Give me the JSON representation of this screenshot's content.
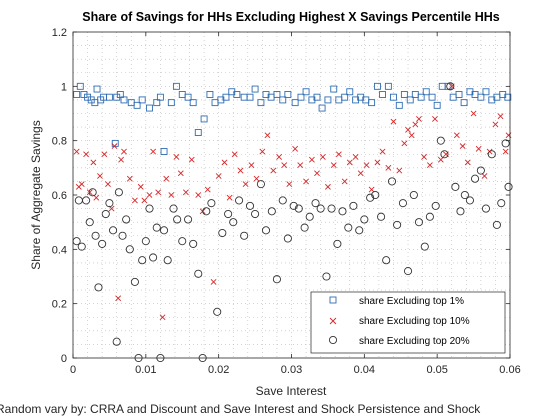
{
  "chart_data": {
    "type": "scatter",
    "title": "Share of Savings for HHs Excluding Highest X Savings Percentile HHs",
    "xlabel": "Save Interest",
    "ylabel": "Share of Aggregate Savings",
    "footnote": "Random vary by: CRRA and Discount and Save Interest and Shock Persistence and Shock",
    "xlim": [
      0,
      0.06
    ],
    "ylim": [
      0,
      1.2
    ],
    "xticks": [
      "0",
      "0.01",
      "0.02",
      "0.03",
      "0.04",
      "0.05",
      "0.06"
    ],
    "yticks": [
      "0",
      "0.2",
      "0.4",
      "0.6",
      "0.8",
      "1",
      "1.2"
    ],
    "grid": "minor dotted",
    "legend_position": "bottom-right",
    "colors": {
      "top1": "#2f6db3",
      "top10": "#d62728",
      "top20": "#333333"
    },
    "series": [
      {
        "name": "share Excluding top 1%",
        "marker": "square",
        "points": [
          [
            0.0005,
            0.97
          ],
          [
            0.001,
            1.0
          ],
          [
            0.0015,
            0.97
          ],
          [
            0.002,
            0.96
          ],
          [
            0.0025,
            0.95
          ],
          [
            0.003,
            0.94
          ],
          [
            0.0033,
            0.99
          ],
          [
            0.0038,
            0.95
          ],
          [
            0.0042,
            0.96
          ],
          [
            0.005,
            0.96
          ],
          [
            0.0058,
            0.79
          ],
          [
            0.006,
            0.96
          ],
          [
            0.0065,
            0.97
          ],
          [
            0.007,
            0.95
          ],
          [
            0.008,
            0.94
          ],
          [
            0.0088,
            0.93
          ],
          [
            0.0095,
            0.95
          ],
          [
            0.0105,
            0.92
          ],
          [
            0.0115,
            0.94
          ],
          [
            0.012,
            0.96
          ],
          [
            0.0125,
            0.76
          ],
          [
            0.0135,
            0.94
          ],
          [
            0.0142,
            1.0
          ],
          [
            0.015,
            0.97
          ],
          [
            0.0158,
            0.96
          ],
          [
            0.0165,
            0.94
          ],
          [
            0.0172,
            0.83
          ],
          [
            0.018,
            0.88
          ],
          [
            0.0188,
            0.97
          ],
          [
            0.0195,
            0.94
          ],
          [
            0.0203,
            0.95
          ],
          [
            0.021,
            0.96
          ],
          [
            0.0218,
            0.98
          ],
          [
            0.0225,
            0.97
          ],
          [
            0.0235,
            0.96
          ],
          [
            0.0243,
            0.96
          ],
          [
            0.025,
            0.99
          ],
          [
            0.0258,
            0.94
          ],
          [
            0.0265,
            0.97
          ],
          [
            0.0272,
            0.96
          ],
          [
            0.028,
            0.97
          ],
          [
            0.0288,
            0.95
          ],
          [
            0.0295,
            0.97
          ],
          [
            0.0305,
            0.94
          ],
          [
            0.0313,
            0.96
          ],
          [
            0.032,
            0.98
          ],
          [
            0.0328,
            0.95
          ],
          [
            0.0335,
            0.96
          ],
          [
            0.0342,
            0.92
          ],
          [
            0.035,
            0.95
          ],
          [
            0.0358,
            0.99
          ],
          [
            0.0365,
            0.95
          ],
          [
            0.0373,
            0.96
          ],
          [
            0.038,
            0.98
          ],
          [
            0.0388,
            0.95
          ],
          [
            0.0395,
            0.96
          ],
          [
            0.0402,
            0.95
          ],
          [
            0.041,
            0.94
          ],
          [
            0.0418,
            1.0
          ],
          [
            0.0425,
            0.97
          ],
          [
            0.0433,
            1.0
          ],
          [
            0.044,
            0.96
          ],
          [
            0.0448,
            0.93
          ],
          [
            0.0455,
            0.97
          ],
          [
            0.0463,
            0.95
          ],
          [
            0.047,
            0.97
          ],
          [
            0.0478,
            0.96
          ],
          [
            0.0485,
            0.98
          ],
          [
            0.0493,
            0.96
          ],
          [
            0.05,
            0.93
          ],
          [
            0.0507,
            1.0
          ],
          [
            0.0515,
            1.0
          ],
          [
            0.0522,
            0.96
          ],
          [
            0.053,
            0.97
          ],
          [
            0.0537,
            0.94
          ],
          [
            0.0545,
            0.98
          ],
          [
            0.0552,
            0.97
          ],
          [
            0.056,
            0.96
          ],
          [
            0.0567,
            0.98
          ],
          [
            0.0575,
            0.95
          ],
          [
            0.0582,
            0.96
          ],
          [
            0.059,
            0.97
          ],
          [
            0.0597,
            0.96
          ]
        ]
      },
      {
        "name": "share Excluding top 10%",
        "marker": "x",
        "points": [
          [
            0.0005,
            0.76
          ],
          [
            0.0008,
            0.63
          ],
          [
            0.0012,
            0.64
          ],
          [
            0.0018,
            0.75
          ],
          [
            0.0023,
            0.61
          ],
          [
            0.0028,
            0.72
          ],
          [
            0.0032,
            0.59
          ],
          [
            0.0037,
            0.67
          ],
          [
            0.0043,
            0.75
          ],
          [
            0.0048,
            0.64
          ],
          [
            0.0053,
            0.55
          ],
          [
            0.0057,
            0.78
          ],
          [
            0.0062,
            0.22
          ],
          [
            0.0066,
            0.73
          ],
          [
            0.007,
            0.76
          ],
          [
            0.0078,
            0.66
          ],
          [
            0.0085,
            0.58
          ],
          [
            0.0093,
            0.63
          ],
          [
            0.0098,
            0.58
          ],
          [
            0.0105,
            0.6
          ],
          [
            0.011,
            0.76
          ],
          [
            0.0117,
            0.61
          ],
          [
            0.0123,
            0.15
          ],
          [
            0.0128,
            0.66
          ],
          [
            0.0135,
            0.6
          ],
          [
            0.0142,
            0.74
          ],
          [
            0.0148,
            0.68
          ],
          [
            0.0155,
            0.61
          ],
          [
            0.0163,
            0.73
          ],
          [
            0.0172,
            0.6
          ],
          [
            0.0178,
            0.54
          ],
          [
            0.0185,
            0.62
          ],
          [
            0.0193,
            0.28
          ],
          [
            0.02,
            0.67
          ],
          [
            0.0208,
            0.72
          ],
          [
            0.0215,
            0.59
          ],
          [
            0.0222,
            0.75
          ],
          [
            0.023,
            0.69
          ],
          [
            0.0237,
            0.64
          ],
          [
            0.0245,
            0.71
          ],
          [
            0.0252,
            0.66
          ],
          [
            0.026,
            0.76
          ],
          [
            0.0267,
            0.82
          ],
          [
            0.0275,
            0.69
          ],
          [
            0.0283,
            0.74
          ],
          [
            0.029,
            0.71
          ],
          [
            0.0297,
            0.64
          ],
          [
            0.0305,
            0.77
          ],
          [
            0.0312,
            0.71
          ],
          [
            0.032,
            0.65
          ],
          [
            0.0328,
            0.73
          ],
          [
            0.0335,
            0.68
          ],
          [
            0.0343,
            0.74
          ],
          [
            0.035,
            0.63
          ],
          [
            0.0358,
            0.71
          ],
          [
            0.0365,
            0.75
          ],
          [
            0.0373,
            0.65
          ],
          [
            0.038,
            0.72
          ],
          [
            0.0388,
            0.74
          ],
          [
            0.0395,
            0.68
          ],
          [
            0.0403,
            0.71
          ],
          [
            0.041,
            0.62
          ],
          [
            0.0418,
            0.72
          ],
          [
            0.0425,
            0.76
          ],
          [
            0.0433,
            0.7
          ],
          [
            0.044,
            0.87
          ],
          [
            0.0448,
            0.69
          ],
          [
            0.0455,
            0.79
          ],
          [
            0.046,
            0.84
          ],
          [
            0.0465,
            0.82
          ],
          [
            0.047,
            0.86
          ],
          [
            0.0475,
            0.88
          ],
          [
            0.0482,
            0.74
          ],
          [
            0.049,
            0.71
          ],
          [
            0.0497,
            0.88
          ],
          [
            0.0505,
            0.73
          ],
          [
            0.0512,
            0.75
          ],
          [
            0.052,
            1.0
          ],
          [
            0.0527,
            0.82
          ],
          [
            0.0535,
            0.78
          ],
          [
            0.0542,
            0.72
          ],
          [
            0.055,
            0.9
          ],
          [
            0.0557,
            0.77
          ],
          [
            0.0565,
            0.67
          ],
          [
            0.0572,
            0.76
          ],
          [
            0.058,
            0.86
          ],
          [
            0.0587,
            0.89
          ],
          [
            0.0594,
            0.76
          ],
          [
            0.0598,
            0.82
          ]
        ]
      },
      {
        "name": "share Excluding top 20%",
        "marker": "circle",
        "points": [
          [
            0.0005,
            0.43
          ],
          [
            0.0008,
            0.58
          ],
          [
            0.0012,
            0.41
          ],
          [
            0.0018,
            0.58
          ],
          [
            0.0023,
            0.5
          ],
          [
            0.0027,
            0.61
          ],
          [
            0.0031,
            0.45
          ],
          [
            0.0035,
            0.26
          ],
          [
            0.004,
            0.42
          ],
          [
            0.0045,
            0.53
          ],
          [
            0.005,
            0.57
          ],
          [
            0.0055,
            0.47
          ],
          [
            0.006,
            0.06
          ],
          [
            0.0063,
            0.61
          ],
          [
            0.0068,
            0.45
          ],
          [
            0.0073,
            0.51
          ],
          [
            0.0078,
            0.4
          ],
          [
            0.0085,
            0.28
          ],
          [
            0.009,
            0.0
          ],
          [
            0.0095,
            0.36
          ],
          [
            0.01,
            0.43
          ],
          [
            0.0105,
            0.55
          ],
          [
            0.011,
            0.37
          ],
          [
            0.0115,
            0.48
          ],
          [
            0.012,
            0.0
          ],
          [
            0.0125,
            0.47
          ],
          [
            0.013,
            0.36
          ],
          [
            0.0138,
            0.55
          ],
          [
            0.0143,
            0.51
          ],
          [
            0.015,
            0.43
          ],
          [
            0.0158,
            0.51
          ],
          [
            0.0165,
            0.42
          ],
          [
            0.0172,
            0.31
          ],
          [
            0.0178,
            0.0
          ],
          [
            0.0183,
            0.54
          ],
          [
            0.019,
            0.57
          ],
          [
            0.0198,
            0.17
          ],
          [
            0.0205,
            0.46
          ],
          [
            0.0213,
            0.53
          ],
          [
            0.022,
            0.5
          ],
          [
            0.0228,
            0.58
          ],
          [
            0.0235,
            0.45
          ],
          [
            0.0243,
            0.56
          ],
          [
            0.025,
            0.53
          ],
          [
            0.0258,
            0.64
          ],
          [
            0.0265,
            0.47
          ],
          [
            0.0273,
            0.54
          ],
          [
            0.028,
            0.29
          ],
          [
            0.0288,
            0.58
          ],
          [
            0.0295,
            0.44
          ],
          [
            0.0303,
            0.56
          ],
          [
            0.031,
            0.55
          ],
          [
            0.0318,
            0.48
          ],
          [
            0.0325,
            0.52
          ],
          [
            0.0333,
            0.57
          ],
          [
            0.034,
            0.55
          ],
          [
            0.0348,
            0.3
          ],
          [
            0.0355,
            0.55
          ],
          [
            0.0363,
            0.42
          ],
          [
            0.037,
            0.54
          ],
          [
            0.0378,
            0.48
          ],
          [
            0.0385,
            0.56
          ],
          [
            0.0393,
            0.47
          ],
          [
            0.04,
            0.51
          ],
          [
            0.0408,
            0.59
          ],
          [
            0.0415,
            0.6
          ],
          [
            0.0423,
            0.52
          ],
          [
            0.043,
            0.36
          ],
          [
            0.0438,
            0.65
          ],
          [
            0.0445,
            0.49
          ],
          [
            0.0453,
            0.57
          ],
          [
            0.046,
            0.32
          ],
          [
            0.0468,
            0.6
          ],
          [
            0.0475,
            0.5
          ],
          [
            0.0483,
            0.41
          ],
          [
            0.049,
            0.52
          ],
          [
            0.0498,
            0.56
          ],
          [
            0.0505,
            0.8
          ],
          [
            0.051,
            0.75
          ],
          [
            0.0518,
            1.0
          ],
          [
            0.0525,
            0.63
          ],
          [
            0.0532,
            0.54
          ],
          [
            0.0538,
            0.6
          ],
          [
            0.0545,
            0.58
          ],
          [
            0.0552,
            0.66
          ],
          [
            0.056,
            0.69
          ],
          [
            0.0567,
            0.55
          ],
          [
            0.0575,
            0.75
          ],
          [
            0.0582,
            0.49
          ],
          [
            0.0588,
            0.57
          ],
          [
            0.0594,
            0.79
          ],
          [
            0.0598,
            0.63
          ]
        ]
      }
    ]
  }
}
